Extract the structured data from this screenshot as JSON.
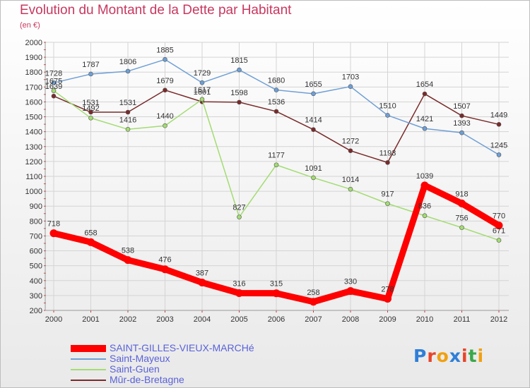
{
  "title": "Evolution du Montant de la Dette par Habitant",
  "subtitle": "(en €)",
  "logo": {
    "text": "Proxiti",
    "colors": [
      "#2e7fd8",
      "#e8442a",
      "#f0a010",
      "#2e7fd8",
      "#e8442a",
      "#3aa84a",
      "#f0a010"
    ]
  },
  "chart_data": {
    "type": "line",
    "x": [
      "2000",
      "2001",
      "2002",
      "2003",
      "2004",
      "2005",
      "2006",
      "2007",
      "2008",
      "2009",
      "2010",
      "2011",
      "2012"
    ],
    "ylim": [
      200,
      2000
    ],
    "yticks": [
      200,
      300,
      400,
      500,
      600,
      700,
      800,
      900,
      1000,
      1100,
      1200,
      1300,
      1400,
      1500,
      1600,
      1700,
      1800,
      1900,
      2000
    ],
    "grid": true,
    "legend_position": "bottom-left",
    "series": [
      {
        "name": "SAINT-GILLES-VIEUX-MARCHé",
        "color": "#ff0000",
        "values": [
          718,
          658,
          538,
          476,
          387,
          316,
          315,
          258,
          330,
          278,
          1039,
          918,
          770
        ]
      },
      {
        "name": "Saint-Mayeux",
        "color": "#6e9fd6",
        "values": [
          1728,
          1787,
          1806,
          1885,
          1729,
          1815,
          1680,
          1655,
          1703,
          1510,
          1421,
          1393,
          1245
        ]
      },
      {
        "name": "Saint-Guen",
        "color": "#a3dc72",
        "values": [
          1675,
          1492,
          1416,
          1440,
          1617,
          827,
          1177,
          1091,
          1014,
          917,
          836,
          756,
          671
        ]
      },
      {
        "name": "Mûr-de-Bretagne",
        "color": "#7a2a2a",
        "values": [
          1639,
          1531,
          1531,
          1679,
          1601,
          1598,
          1536,
          1414,
          1272,
          1193,
          1654,
          1507,
          1449
        ]
      }
    ]
  }
}
